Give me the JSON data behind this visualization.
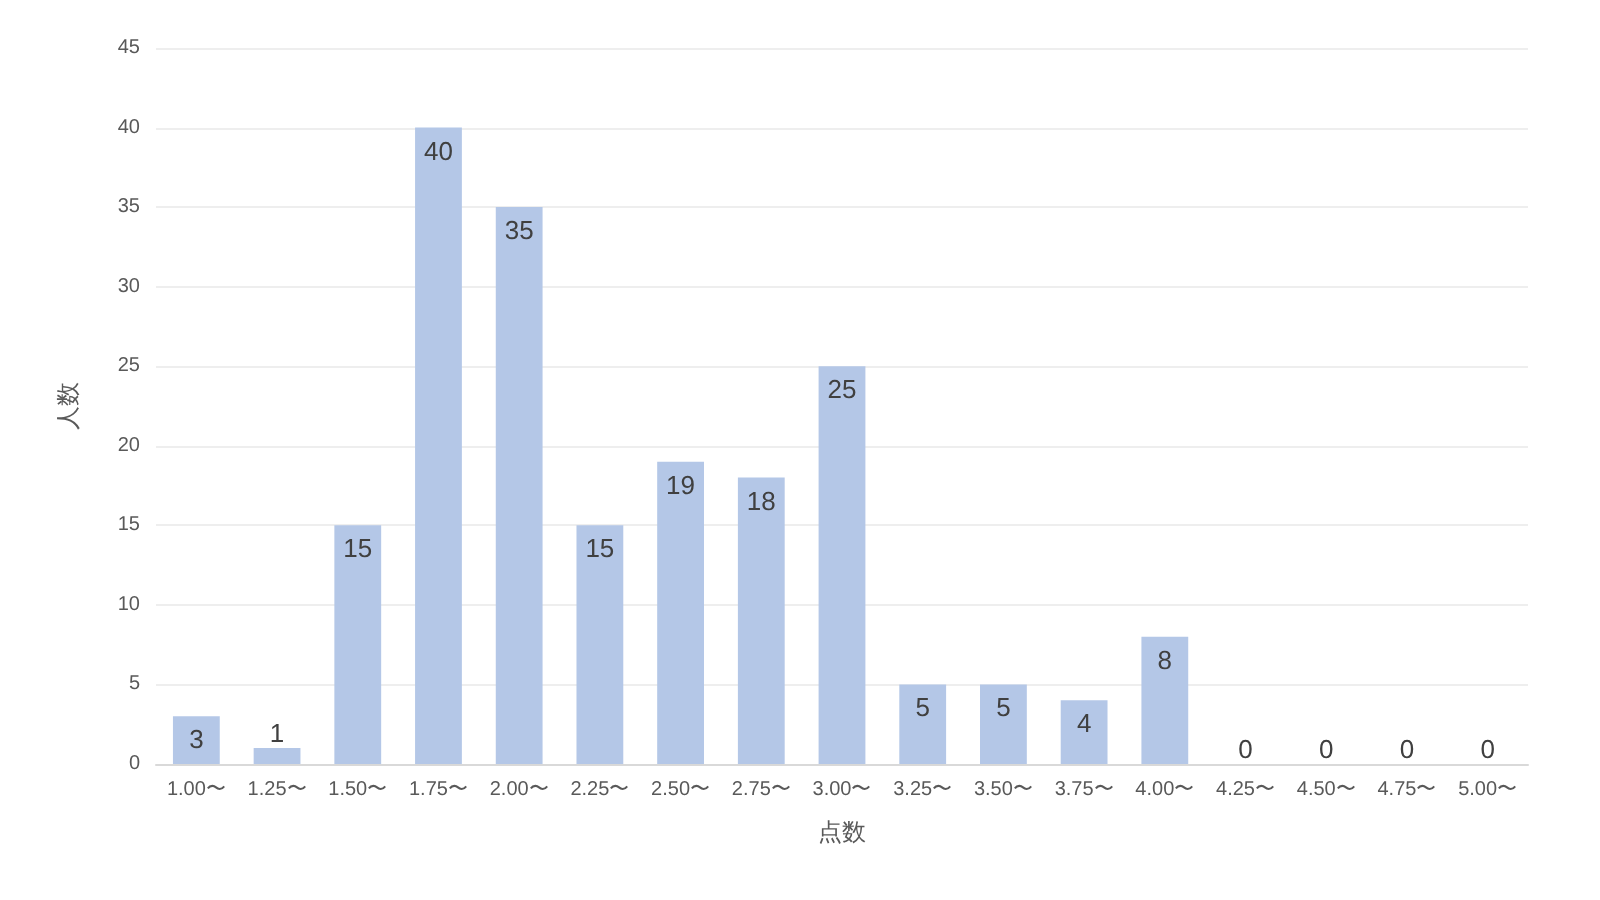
{
  "chart_data": {
    "type": "bar",
    "xlabel": "点数",
    "ylabel": "人数",
    "categories": [
      "1.00〜",
      "1.25〜",
      "1.50〜",
      "1.75〜",
      "2.00〜",
      "2.25〜",
      "2.50〜",
      "2.75〜",
      "3.00〜",
      "3.25〜",
      "3.50〜",
      "3.75〜",
      "4.00〜",
      "4.25〜",
      "4.50〜",
      "4.75〜",
      "5.00〜"
    ],
    "values": [
      3,
      1,
      15,
      40,
      35,
      15,
      19,
      18,
      25,
      5,
      5,
      4,
      8,
      0,
      0,
      0,
      0
    ],
    "color": "#b4c7e7",
    "ylim": [
      0,
      45
    ],
    "yticks": [
      0,
      5,
      10,
      15,
      20,
      25,
      30,
      35,
      40,
      45
    ],
    "grid": "y",
    "data_labels": true
  }
}
